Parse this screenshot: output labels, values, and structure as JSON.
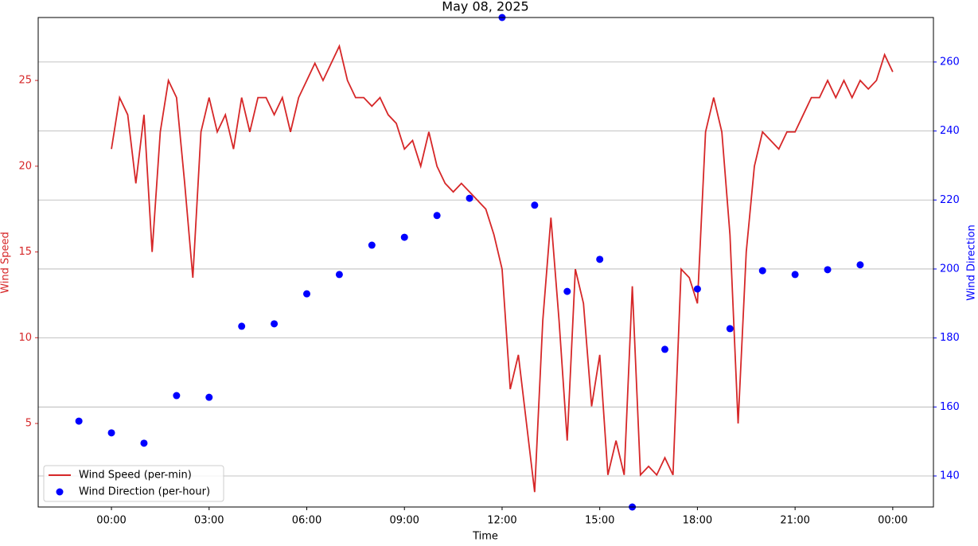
{
  "chart_data": {
    "type": "line",
    "title": "May 08, 2025",
    "xlabel": "Time",
    "ylabel": "Wind Speed",
    "y2label": "Wind Direction",
    "xlim": [
      -2.25,
      25.25
    ],
    "xticks": [
      {
        "value": 0,
        "label": "00:00"
      },
      {
        "value": 3,
        "label": "03:00"
      },
      {
        "value": 6,
        "label": "06:00"
      },
      {
        "value": 9,
        "label": "09:00"
      },
      {
        "value": 12,
        "label": "12:00"
      },
      {
        "value": 15,
        "label": "15:00"
      },
      {
        "value": 18,
        "label": "18:00"
      },
      {
        "value": 21,
        "label": "21:00"
      },
      {
        "value": 24,
        "label": "00:00"
      }
    ],
    "ylim": [
      0.13,
      28.67
    ],
    "yticks": [
      5,
      10,
      15,
      20,
      25
    ],
    "y2lim": [
      131,
      272.9
    ],
    "y2ticks": [
      140,
      160,
      180,
      200,
      220,
      240,
      260
    ],
    "grid": "y2",
    "legend": "lower left",
    "series": [
      {
        "name": "Wind Speed (per-min)",
        "type": "line",
        "color": "#d62728",
        "axis": "y",
        "x": [
          0,
          0.25,
          0.5,
          0.75,
          1,
          1.25,
          1.5,
          1.75,
          2,
          2.25,
          2.5,
          2.75,
          3,
          3.25,
          3.5,
          3.75,
          4,
          4.25,
          4.5,
          4.75,
          5,
          5.25,
          5.5,
          5.75,
          6,
          6.25,
          6.5,
          6.75,
          7,
          7.25,
          7.5,
          7.75,
          8,
          8.25,
          8.5,
          8.75,
          9,
          9.25,
          9.5,
          9.75,
          10,
          10.25,
          10.5,
          10.75,
          11,
          11.25,
          11.5,
          11.75,
          12,
          12.25,
          12.5,
          12.75,
          13,
          13.25,
          13.5,
          13.75,
          14,
          14.25,
          14.5,
          14.75,
          15,
          15.25,
          15.5,
          15.75,
          16,
          16.25,
          16.5,
          16.75,
          17,
          17.25,
          17.5,
          17.75,
          18,
          18.25,
          18.5,
          18.75,
          19,
          19.25,
          19.5,
          19.75,
          20,
          20.25,
          20.5,
          20.75,
          21,
          21.25,
          21.5,
          21.75,
          22,
          22.25,
          22.5,
          22.75,
          23,
          23.25,
          23.5,
          23.75,
          24
        ],
        "values": [
          21,
          24,
          23,
          19,
          23,
          15,
          22,
          25,
          24,
          19,
          13.5,
          22,
          24,
          22,
          23,
          21,
          24,
          22,
          24,
          24,
          23,
          24,
          22,
          24,
          25,
          26,
          25,
          26,
          27,
          25,
          24,
          24,
          23.5,
          24,
          23,
          22.5,
          21,
          21.5,
          20,
          22,
          20,
          19,
          18.5,
          19,
          18.5,
          18,
          17.5,
          16,
          14,
          7,
          9,
          5,
          1,
          11,
          17,
          11,
          4,
          14,
          12,
          6,
          9,
          2,
          4,
          2,
          13,
          2,
          2.5,
          2,
          3,
          2,
          14,
          13.5,
          12,
          22,
          24,
          22,
          16,
          5,
          15,
          20,
          22,
          21.5,
          21,
          22,
          22,
          23,
          24,
          24,
          25,
          24,
          25,
          24,
          25,
          24.5,
          25,
          26.5,
          25.5
        ]
      },
      {
        "name": "Wind Direction (per-hour)",
        "type": "scatter",
        "color": "#0000ff",
        "axis": "y2",
        "x": [
          -1,
          0,
          1,
          2,
          3,
          4,
          5,
          6,
          7,
          8,
          9,
          10,
          11,
          12,
          13,
          14,
          15,
          16,
          17,
          18,
          19,
          20,
          21,
          22,
          23
        ],
        "values": [
          155.9,
          152.5,
          149.5,
          163.3,
          162.8,
          183.4,
          184.1,
          192.8,
          198.4,
          206.9,
          209.2,
          215.5,
          220.5,
          272.9,
          218.5,
          193.5,
          202.8,
          131,
          176.7,
          194.2,
          182.7,
          199.5,
          198.4,
          199.8,
          201.2
        ]
      }
    ]
  }
}
